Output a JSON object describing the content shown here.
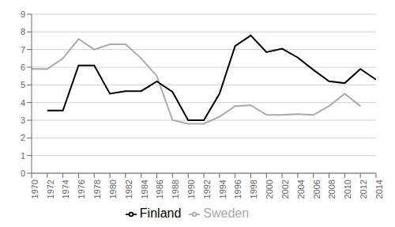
{
  "chart_data": {
    "type": "line",
    "x": [
      1970,
      1972,
      1974,
      1976,
      1978,
      1980,
      1982,
      1984,
      1986,
      1988,
      1990,
      1992,
      1994,
      1996,
      1998,
      2000,
      2002,
      2004,
      2006,
      2008,
      2010,
      2012,
      2014
    ],
    "series": [
      {
        "name": "Sweden",
        "color": "#aaaaaa",
        "values": [
          5.9,
          5.9,
          6.5,
          7.6,
          7.0,
          7.3,
          7.3,
          6.5,
          5.5,
          3.0,
          2.8,
          2.8,
          3.2,
          3.8,
          3.85,
          3.3,
          3.3,
          3.35,
          3.3,
          3.8,
          4.5,
          3.8,
          null
        ]
      },
      {
        "name": "Finland",
        "color": "#000000",
        "values": [
          null,
          3.55,
          3.55,
          6.1,
          6.1,
          4.5,
          4.65,
          4.65,
          5.2,
          4.6,
          3.0,
          3.0,
          4.5,
          7.2,
          7.8,
          6.85,
          7.05,
          6.55,
          5.85,
          5.2,
          5.1,
          5.9,
          5.3
        ]
      }
    ],
    "xlim": [
      1970,
      2014
    ],
    "xticks": [
      1970,
      1972,
      1974,
      1976,
      1978,
      1980,
      1982,
      1984,
      1986,
      1988,
      1990,
      1992,
      1994,
      1996,
      1998,
      2000,
      2002,
      2004,
      2006,
      2008,
      2010,
      2012,
      2014
    ],
    "ylim": [
      0,
      9
    ],
    "yticks": [
      0,
      1,
      2,
      3,
      4,
      5,
      6,
      7,
      8,
      9
    ],
    "grid": true,
    "legend": "bottom"
  }
}
